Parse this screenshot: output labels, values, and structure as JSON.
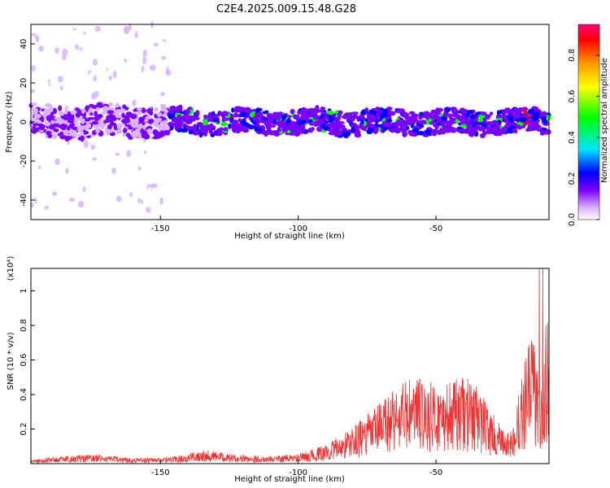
{
  "title": "C2E4.2025.009.15.48.G28",
  "top_panel": {
    "ylabel": "Frequency (Hz)",
    "xlabel": "Height of straight line (km)",
    "colorbar_label": "Normalized spectral amplitude"
  },
  "bottom_panel": {
    "ylabel": "SNR (10 * v/v)",
    "xlabel": "Height of straight line (km)",
    "scale_label": "(x10⁴)"
  },
  "chart_data": [
    {
      "type": "heatmap",
      "title": "C2E4.2025.009.15.48.G28",
      "xlabel": "Height of straight line (km)",
      "ylabel": "Frequency (Hz)",
      "xlim": [
        -197,
        -9
      ],
      "ylim": [
        -50,
        50
      ],
      "xticks": [
        -150,
        -100,
        -50
      ],
      "xtick_labels": [
        "-150",
        "-100",
        "-50"
      ],
      "yticks": [
        -40,
        -20,
        0,
        20,
        40
      ],
      "ytick_labels": [
        "-40",
        "-20",
        "0",
        "20",
        "40"
      ],
      "colorbar": {
        "label": "Normalized spectral amplitude",
        "range": [
          0,
          0.95
        ],
        "ticks": [
          0,
          0.2,
          0.4,
          0.6,
          0.8
        ],
        "tick_labels": [
          "0.0",
          "0.2",
          "0.4",
          "0.6",
          "0.8"
        ],
        "colormap": [
          "#ffffff",
          "#d9b3ff",
          "#7a00ff",
          "#0000ff",
          "#00e5ff",
          "#00ff00",
          "#ffff00",
          "#ff9900",
          "#ff0000",
          "#ff007f"
        ]
      },
      "band_center_hz": 0,
      "strong_band_start_km": -147
    },
    {
      "type": "line",
      "xlabel": "Height of straight line (km)",
      "ylabel": "SNR (10 * v/v)",
      "y_scale_label": "(x10⁴)",
      "xlim": [
        -197,
        -9
      ],
      "ylim": [
        0,
        1.13
      ],
      "xticks": [
        -150,
        -100,
        -50
      ],
      "xtick_labels": [
        "-150",
        "-100",
        "-50"
      ],
      "yticks": [
        0.2,
        0.4,
        0.6,
        0.8,
        1.0
      ],
      "ytick_labels": [
        "0.2",
        "0.4",
        "0.6",
        "0.8",
        "1"
      ],
      "color": "#ee3333",
      "envelope": {
        "x": [
          -197,
          -185,
          -175,
          -160,
          -150,
          -140,
          -135,
          -125,
          -112,
          -100,
          -90,
          -85,
          -80,
          -75,
          -70,
          -65,
          -60,
          -55,
          -50,
          -45,
          -40,
          -35,
          -30,
          -25,
          -22,
          -18,
          -15,
          -12,
          -10,
          -9
        ],
        "y": [
          0.02,
          0.04,
          0.05,
          0.03,
          0.03,
          0.05,
          0.08,
          0.05,
          0.04,
          0.05,
          0.1,
          0.15,
          0.2,
          0.26,
          0.33,
          0.42,
          0.45,
          0.46,
          0.41,
          0.43,
          0.46,
          0.42,
          0.28,
          0.16,
          0.18,
          0.55,
          0.7,
          0.45,
          0.65,
          0.88
        ]
      }
    }
  ]
}
